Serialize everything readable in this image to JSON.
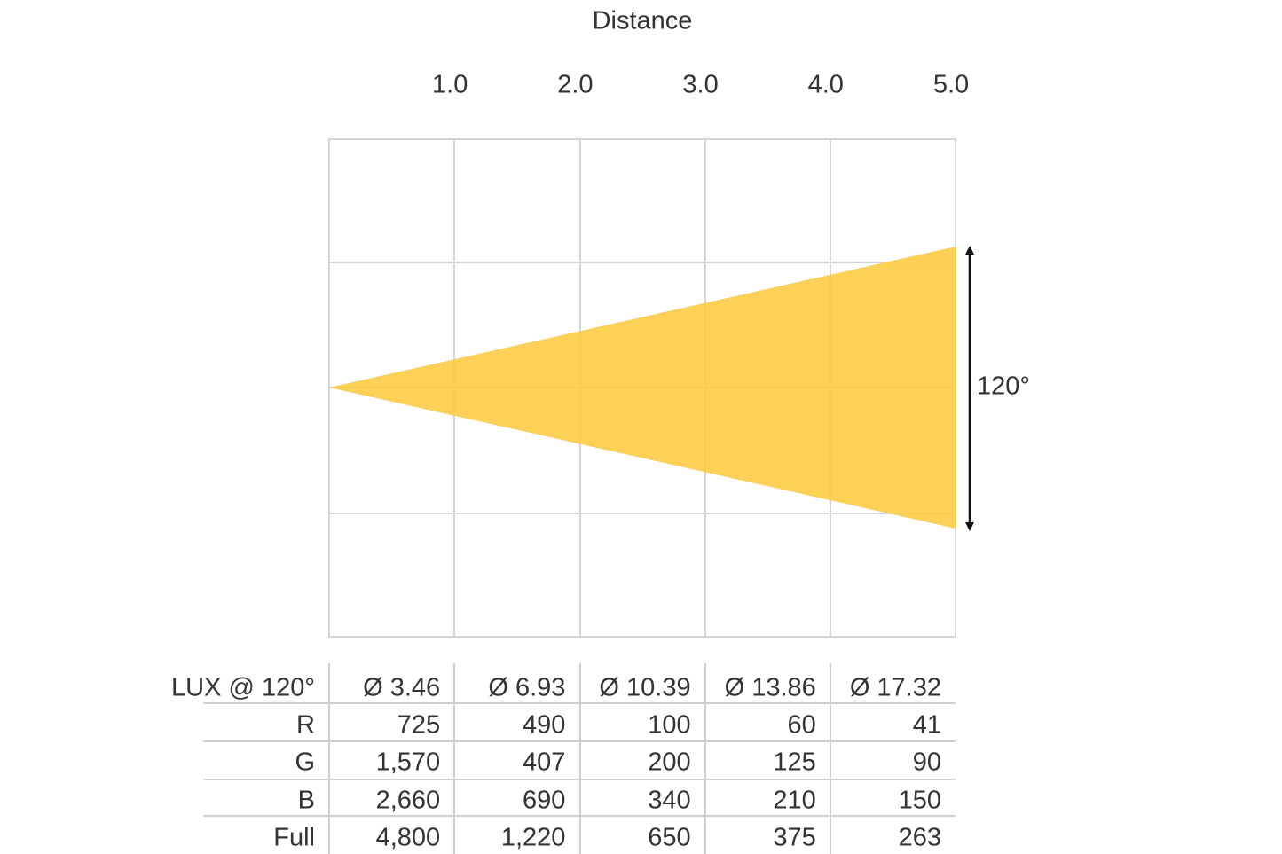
{
  "title": "Distance",
  "distances": [
    "1.0",
    "2.0",
    "3.0",
    "4.0",
    "5.0"
  ],
  "beam_angle": "120°",
  "table": {
    "header": [
      "LUX @ 120°",
      "Ø 3.46",
      "Ø 6.93",
      "Ø 10.39",
      "Ø 13.86",
      "Ø 17.32"
    ],
    "rows": [
      [
        "R",
        "725",
        "490",
        "100",
        "60",
        "41"
      ],
      [
        "G",
        "1,570",
        "407",
        "200",
        "125",
        "90"
      ],
      [
        "B",
        "2,660",
        "690",
        "340",
        "210",
        "150"
      ],
      [
        "Full",
        "4,800",
        "1,220",
        "650",
        "375",
        "263"
      ]
    ]
  }
}
